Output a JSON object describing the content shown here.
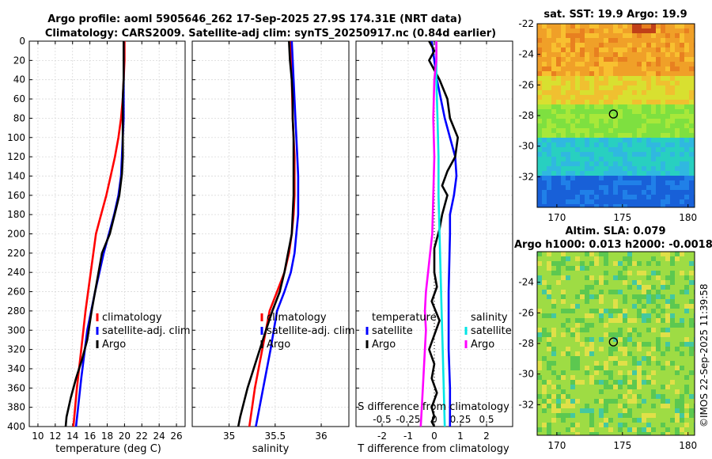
{
  "title": {
    "line1": "Argo profile: aoml 5905646_262 17-Sep-2025 27.9S 174.31E (NRT data)",
    "line2": "Climatology: CARS2009. Satellite-adj clim: synTS_20250917.nc (0.84d earlier)"
  },
  "footer_stamp": "©IMOS 22-Sep-2025 11:39:58",
  "colors": {
    "climatology": "#ff0000",
    "satellite": "#0000ff",
    "argo": "#000000",
    "sal_satellite": "#00e5e5",
    "sal_argo": "#ff00ff"
  },
  "chart_data": [
    {
      "id": "temperature-profile",
      "type": "line",
      "xlabel": "temperature (deg C)",
      "xlim": [
        9,
        27
      ],
      "xticks": [
        10,
        12,
        14,
        16,
        18,
        20,
        22,
        24,
        26
      ],
      "ylim": [
        0,
        400
      ],
      "yticks": [
        0,
        20,
        40,
        60,
        80,
        100,
        120,
        140,
        160,
        180,
        200,
        220,
        240,
        260,
        280,
        300,
        320,
        340,
        360,
        380,
        400
      ],
      "grid": true,
      "legend": [
        "climatology",
        "satellite-adj. clim",
        "Argo"
      ],
      "series": [
        {
          "name": "climatology",
          "color": "#ff0000",
          "x": [
            20.0,
            20.0,
            19.9,
            19.8,
            19.6,
            19.3,
            18.9,
            18.4,
            17.9,
            17.3,
            16.7,
            16.1,
            15.5,
            15.0,
            14.5,
            14.1
          ],
          "y": [
            0,
            20,
            40,
            60,
            80,
            100,
            120,
            140,
            160,
            180,
            200,
            240,
            280,
            320,
            360,
            400
          ]
        },
        {
          "name": "satellite-adj. clim",
          "color": "#0000ff",
          "x": [
            19.9,
            19.9,
            19.9,
            19.9,
            19.9,
            19.8,
            19.7,
            19.6,
            19.3,
            18.8,
            18.2,
            17.6,
            16.6,
            15.7,
            15.0,
            14.4
          ],
          "y": [
            0,
            20,
            40,
            60,
            80,
            100,
            120,
            140,
            160,
            180,
            200,
            220,
            260,
            300,
            350,
            400
          ]
        },
        {
          "name": "Argo",
          "color": "#000000",
          "x": [
            19.9,
            19.9,
            19.9,
            19.8,
            19.8,
            19.8,
            19.8,
            19.7,
            19.4,
            19.0,
            18.3,
            17.4,
            16.8,
            16.2,
            15.7,
            15.1,
            14.4,
            13.8,
            13.3,
            13.2
          ],
          "y": [
            0,
            20,
            40,
            60,
            80,
            100,
            120,
            138,
            160,
            175,
            200,
            220,
            250,
            280,
            310,
            330,
            350,
            370,
            390,
            400
          ]
        }
      ]
    },
    {
      "id": "salinity-profile",
      "type": "line",
      "xlabel": "salinity",
      "xlim": [
        34.6,
        36.3
      ],
      "xticks": [
        35,
        35.5,
        36
      ],
      "ylim": [
        0,
        400
      ],
      "grid": true,
      "legend": [
        "climatology",
        "satellite-adj. clim",
        "Argo"
      ],
      "series": [
        {
          "name": "climatology",
          "color": "#ff0000",
          "x": [
            35.66,
            35.67,
            35.68,
            35.69,
            35.7,
            35.71,
            35.71,
            35.71,
            35.7,
            35.68,
            35.65,
            35.6,
            35.52,
            35.44,
            35.36,
            35.28,
            35.22
          ],
          "y": [
            0,
            20,
            40,
            80,
            100,
            120,
            140,
            160,
            180,
            200,
            220,
            240,
            260,
            280,
            320,
            360,
            400
          ]
        },
        {
          "name": "satellite-adj. clim",
          "color": "#0000ff",
          "x": [
            35.68,
            35.69,
            35.7,
            35.72,
            35.73,
            35.74,
            35.75,
            35.75,
            35.75,
            35.73,
            35.71,
            35.67,
            35.6,
            35.52,
            35.45,
            35.37,
            35.29
          ],
          "y": [
            0,
            20,
            40,
            80,
            100,
            120,
            140,
            160,
            180,
            200,
            220,
            240,
            260,
            280,
            320,
            360,
            400
          ]
        },
        {
          "name": "Argo",
          "color": "#000000",
          "x": [
            35.65,
            35.66,
            35.68,
            35.69,
            35.69,
            35.7,
            35.7,
            35.7,
            35.7,
            35.69,
            35.68,
            35.66,
            35.64,
            35.6,
            35.55,
            35.47,
            35.4,
            35.3,
            35.2,
            35.12,
            35.1
          ],
          "y": [
            0,
            20,
            40,
            60,
            80,
            100,
            120,
            140,
            160,
            180,
            200,
            210,
            220,
            240,
            260,
            280,
            300,
            330,
            360,
            390,
            400
          ]
        }
      ]
    },
    {
      "id": "difference-profile",
      "type": "line",
      "xlabel": "T difference from climatology",
      "x2label": "S difference from climatology",
      "xlim": [
        -3,
        3
      ],
      "xticks": [
        -2,
        -1,
        0,
        1,
        2
      ],
      "x2lim": [
        -0.75,
        0.75
      ],
      "x2ticks": [
        "-0.5",
        "-0.25",
        "0",
        "0.25",
        "0.5"
      ],
      "ylim": [
        0,
        400
      ],
      "grid": true,
      "legend_headers": [
        "temperature",
        "salinity"
      ],
      "legend": [
        "satellite",
        "Argo",
        "satellite",
        "Argo"
      ],
      "series": [
        {
          "name": "temperature satellite",
          "color": "#0000ff",
          "x": [
            -0.1,
            0.0,
            0.1,
            0.4,
            0.6,
            0.8,
            0.85,
            0.75,
            0.6,
            0.6,
            0.55,
            0.55,
            0.6,
            0.6
          ],
          "y": [
            0,
            20,
            40,
            80,
            100,
            120,
            140,
            160,
            180,
            200,
            260,
            320,
            360,
            400
          ]
        },
        {
          "name": "temperature Argo",
          "color": "#000000",
          "x": [
            -0.2,
            0.0,
            -0.2,
            0.0,
            0.2,
            0.5,
            0.6,
            0.9,
            0.8,
            0.5,
            0.3,
            0.5,
            0.3,
            0.2,
            0.0,
            0.0,
            0.1,
            -0.1,
            0.2,
            0.0,
            -0.2,
            0.0,
            -0.1,
            0.1,
            -0.1,
            0.0,
            -0.1,
            0.0
          ],
          "y": [
            0,
            10,
            20,
            30,
            40,
            60,
            80,
            100,
            120,
            135,
            150,
            160,
            180,
            195,
            215,
            240,
            255,
            270,
            290,
            305,
            320,
            335,
            350,
            365,
            380,
            390,
            395,
            400
          ]
        },
        {
          "name": "salinity satellite",
          "color": "#00e5e5",
          "x2": [
            0.02,
            0.02,
            0.03,
            0.04,
            0.04,
            0.05,
            0.06,
            0.07,
            0.08,
            0.09,
            0.1
          ],
          "y": [
            0,
            40,
            80,
            120,
            160,
            200,
            240,
            280,
            320,
            360,
            400
          ]
        },
        {
          "name": "salinity Argo",
          "color": "#ff00ff",
          "x2": [
            0.02,
            0.02,
            0.0,
            -0.01,
            0.0,
            -0.01,
            -0.02,
            -0.04,
            -0.06,
            -0.08,
            -0.09,
            -0.08,
            -0.09,
            -0.1,
            -0.11,
            -0.12,
            -0.13
          ],
          "y": [
            0,
            20,
            40,
            80,
            120,
            160,
            200,
            220,
            240,
            260,
            280,
            300,
            320,
            340,
            360,
            380,
            400
          ]
        }
      ]
    }
  ],
  "maps": [
    {
      "id": "sst-map",
      "title": "sat. SST: 19.9 Argo: 19.9",
      "xticks": [
        170,
        175,
        180
      ],
      "yticks": [
        -22,
        -24,
        -26,
        -28,
        -30,
        -32
      ],
      "xlim": [
        168.5,
        180.5
      ],
      "ylim": [
        -34,
        -22
      ],
      "marker": {
        "lon": 174.31,
        "lat": -27.9
      },
      "colors": {
        "top": "#f0a020",
        "mid": "#a8e23a",
        "band": "#2ad6b0",
        "bottom": "#1860d8"
      }
    },
    {
      "id": "sla-map",
      "title_line1": "Altim. SLA: 0.079",
      "title_line2": "Argo h1000: 0.013 h2000: -0.0018",
      "xticks": [
        170,
        175,
        180
      ],
      "yticks": [
        -24,
        -26,
        -28,
        -30,
        -32
      ],
      "xlim": [
        168.5,
        180.5
      ],
      "ylim": [
        -34,
        -22
      ],
      "marker": {
        "lon": 174.31,
        "lat": -27.9
      },
      "colors": {
        "base": "#a8dc3c",
        "yellow": "#e8e040",
        "green": "#56c650",
        "cyan": "#40c8a0"
      }
    }
  ]
}
